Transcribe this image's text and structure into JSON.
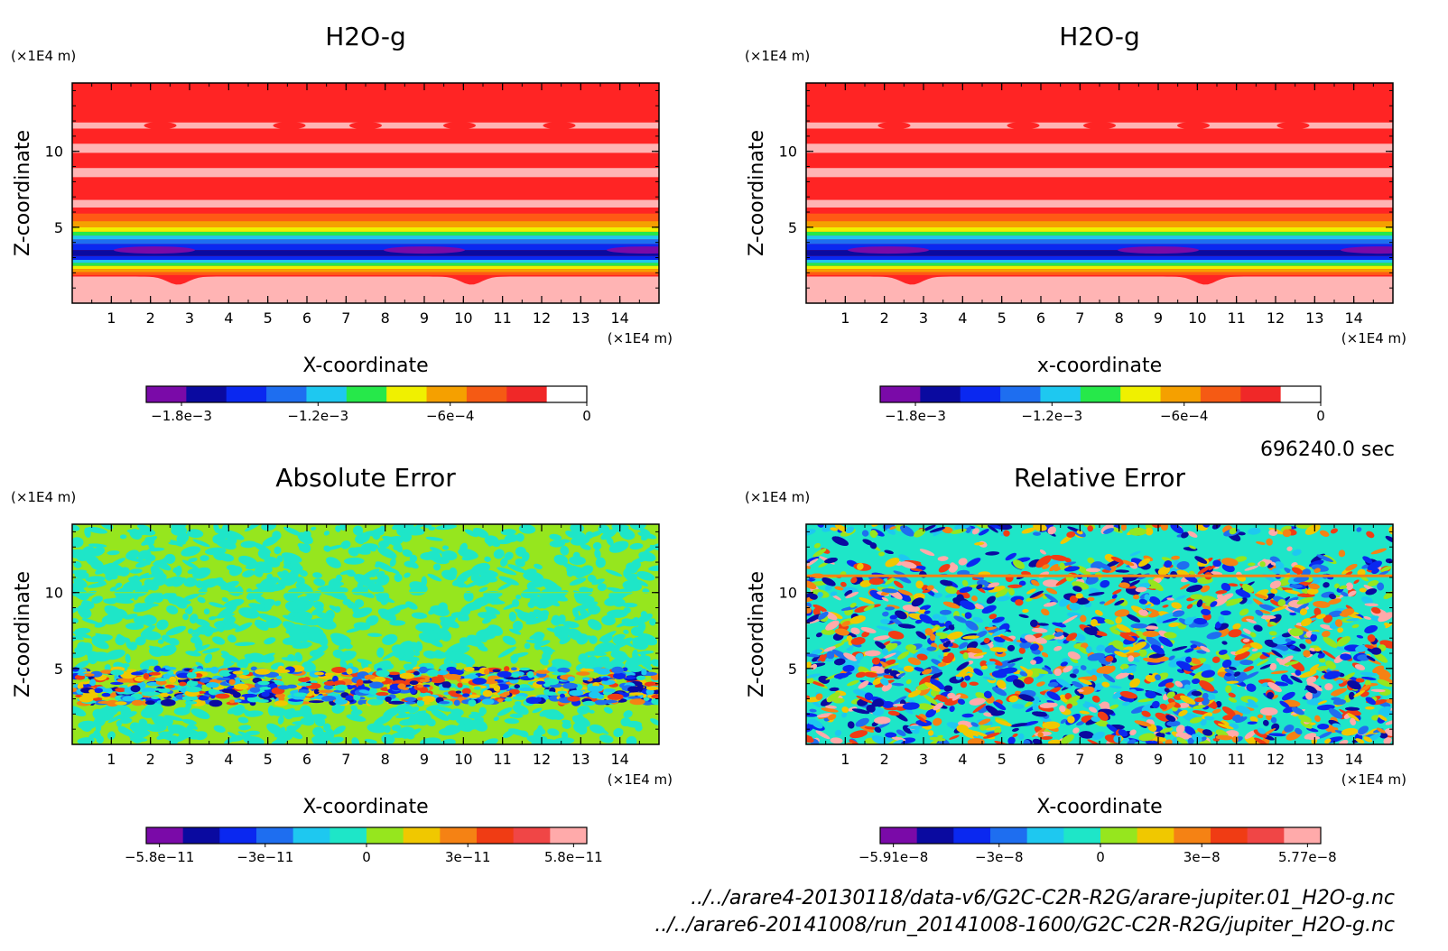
{
  "panels": [
    {
      "id": "p1",
      "title": "H2O-g",
      "xlabel": "X-coordinate",
      "ylabel": "Z-coordinate",
      "x_unit": "(×1E4 m)",
      "y_unit": "(×1E4 m)",
      "x_ticks": [
        "1",
        "2",
        "3",
        "4",
        "5",
        "6",
        "7",
        "8",
        "9",
        "10",
        "11",
        "12",
        "13",
        "14"
      ],
      "y_ticks": [
        "5",
        "10"
      ],
      "colorbar": {
        "labels": [
          "−1.8e−3",
          "−1.2e−3",
          "−6e−4",
          "0"
        ],
        "colors": [
          "#7a0aa8",
          "#0a0aa0",
          "#0a28f0",
          "#1e6ef0",
          "#1ec8f0",
          "#26e84a",
          "#f0f000",
          "#f5a000",
          "#f55a14",
          "#f02828",
          "#ffffff"
        ]
      }
    },
    {
      "id": "p2",
      "title": "H2O-g",
      "xlabel": "x-coordinate",
      "ylabel": "Z-coordinate",
      "x_unit": "(×1E4 m)",
      "y_unit": "(×1E4 m)",
      "x_ticks": [
        "1",
        "2",
        "3",
        "4",
        "5",
        "6",
        "7",
        "8",
        "9",
        "10",
        "11",
        "12",
        "13",
        "14"
      ],
      "y_ticks": [
        "5",
        "10"
      ],
      "colorbar": {
        "labels": [
          "−1.8e−3",
          "−1.2e−3",
          "−6e−4",
          "0"
        ],
        "colors": [
          "#7a0aa8",
          "#0a0aa0",
          "#0a28f0",
          "#1e6ef0",
          "#1ec8f0",
          "#26e84a",
          "#f0f000",
          "#f5a000",
          "#f55a14",
          "#f02828",
          "#ffffff"
        ]
      }
    },
    {
      "id": "p3",
      "title": "Absolute Error",
      "xlabel": "X-coordinate",
      "ylabel": "Z-coordinate",
      "x_unit": "(×1E4 m)",
      "y_unit": "(×1E4 m)",
      "x_ticks": [
        "1",
        "2",
        "3",
        "4",
        "5",
        "6",
        "7",
        "8",
        "9",
        "10",
        "11",
        "12",
        "13",
        "14"
      ],
      "y_ticks": [
        "5",
        "10"
      ],
      "colorbar": {
        "labels": [
          "−5.8e−11",
          "−3e−11",
          "0",
          "3e−11",
          "5.8e−11"
        ],
        "colors": [
          "#7a0aa8",
          "#0a0aa0",
          "#0a28f0",
          "#1e6ef0",
          "#1ec8f0",
          "#1ee6c8",
          "#96e61e",
          "#f0c800",
          "#f58214",
          "#f03c14",
          "#f04646",
          "#ffaaaa"
        ]
      }
    },
    {
      "id": "p4",
      "title": "Relative Error",
      "xlabel": "X-coordinate",
      "ylabel": "Z-coordinate",
      "x_unit": "(×1E4 m)",
      "y_unit": "(×1E4 m)",
      "x_ticks": [
        "1",
        "2",
        "3",
        "4",
        "5",
        "6",
        "7",
        "8",
        "9",
        "10",
        "11",
        "12",
        "13",
        "14"
      ],
      "y_ticks": [
        "5",
        "10"
      ],
      "colorbar": {
        "labels": [
          "−5.91e−8",
          "−3e−8",
          "0",
          "3e−8",
          "5.77e−8"
        ],
        "colors": [
          "#7a0aa8",
          "#0a0aa0",
          "#0a28f0",
          "#1e6ef0",
          "#1ec8f0",
          "#1ee6c8",
          "#96e61e",
          "#f0c800",
          "#f58214",
          "#f03c14",
          "#f04646",
          "#ffaaaa"
        ]
      }
    }
  ],
  "time_label": "696240.0 sec",
  "footer": [
    "../../arare4-20130118/data-v6/G2C-C2R-R2G/arare-jupiter.01_H2O-g.nc",
    "../../arare6-20141008/run_20141008-1600/G2C-C2R-R2G/jupiter_H2O-g.nc"
  ],
  "chart_data": [
    {
      "type": "heatmap",
      "title": "H2O-g",
      "xlabel": "X-coordinate",
      "ylabel": "Z-coordinate",
      "xlim": [
        0,
        15
      ],
      "ylim": [
        0,
        14.5
      ],
      "colorbar_range": [
        -0.002,
        0
      ]
    },
    {
      "type": "heatmap",
      "title": "H2O-g",
      "xlabel": "x-coordinate",
      "ylabel": "Z-coordinate",
      "xlim": [
        0,
        15
      ],
      "ylim": [
        0,
        14.5
      ],
      "colorbar_range": [
        -0.002,
        0
      ]
    },
    {
      "type": "heatmap",
      "title": "Absolute Error",
      "xlabel": "X-coordinate",
      "ylabel": "Z-coordinate",
      "xlim": [
        0,
        15
      ],
      "ylim": [
        0,
        14.5
      ],
      "colorbar_range": [
        -5.8e-11,
        5.8e-11
      ]
    },
    {
      "type": "heatmap",
      "title": "Relative Error",
      "xlabel": "X-coordinate",
      "ylabel": "Z-coordinate",
      "xlim": [
        0,
        15
      ],
      "ylim": [
        0,
        14.5
      ],
      "colorbar_range": [
        -5.91e-08,
        5.77e-08
      ]
    }
  ]
}
